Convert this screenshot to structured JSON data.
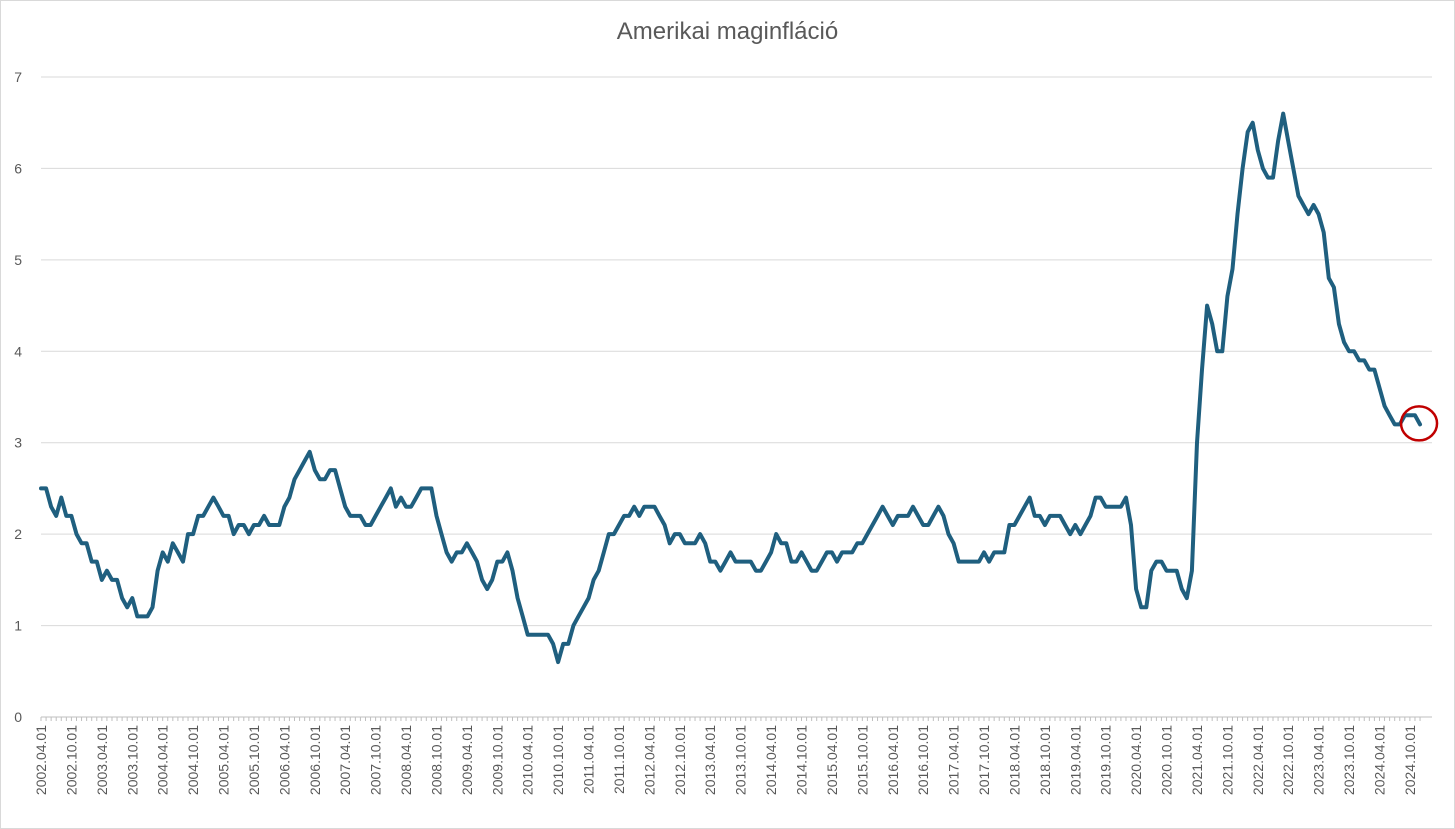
{
  "chart_data": {
    "type": "line",
    "title": "Amerikai maginfláció",
    "xlabel": "",
    "ylabel": "",
    "ylim": [
      0,
      7
    ],
    "yticks": [
      0,
      1,
      2,
      3,
      4,
      5,
      6,
      7
    ],
    "grid": true,
    "legend": "none",
    "x_start": "2002.04.01",
    "x_step_months": 1,
    "x_tick_labels": [
      "2002.04.01",
      "2002.10.01",
      "2003.04.01",
      "2003.10.01",
      "2004.04.01",
      "2004.10.01",
      "2005.04.01",
      "2005.10.01",
      "2006.04.01",
      "2006.10.01",
      "2007.04.01",
      "2007.10.01",
      "2008.04.01",
      "2008.10.01",
      "2009.04.01",
      "2009.10.01",
      "2010.04.01",
      "2010.10.01",
      "2011.04.01",
      "2011.10.01",
      "2012.04.01",
      "2012.10.01",
      "2013.04.01",
      "2013.10.01",
      "2014.04.01",
      "2014.10.01",
      "2015.04.01",
      "2015.10.01",
      "2016.04.01",
      "2016.10.01",
      "2017.04.01",
      "2017.10.01",
      "2018.04.01",
      "2018.10.01",
      "2019.04.01",
      "2019.10.01",
      "2020.04.01",
      "2020.10.01",
      "2021.04.01",
      "2021.10.01",
      "2022.04.01",
      "2022.10.01",
      "2023.04.01",
      "2023.10.01",
      "2024.04.01",
      "2024.10.01"
    ],
    "series": [
      {
        "color": "#1f5f7f",
        "values": [
          2.5,
          2.5,
          2.3,
          2.2,
          2.4,
          2.2,
          2.2,
          2.0,
          1.9,
          1.9,
          1.7,
          1.7,
          1.5,
          1.6,
          1.5,
          1.5,
          1.3,
          1.2,
          1.3,
          1.1,
          1.1,
          1.1,
          1.2,
          1.6,
          1.8,
          1.7,
          1.9,
          1.8,
          1.7,
          2.0,
          2.0,
          2.2,
          2.2,
          2.3,
          2.4,
          2.3,
          2.2,
          2.2,
          2.0,
          2.1,
          2.1,
          2.0,
          2.1,
          2.1,
          2.2,
          2.1,
          2.1,
          2.1,
          2.3,
          2.4,
          2.6,
          2.7,
          2.8,
          2.9,
          2.7,
          2.6,
          2.6,
          2.7,
          2.7,
          2.5,
          2.3,
          2.2,
          2.2,
          2.2,
          2.1,
          2.1,
          2.2,
          2.3,
          2.4,
          2.5,
          2.3,
          2.4,
          2.3,
          2.3,
          2.4,
          2.5,
          2.5,
          2.5,
          2.2,
          2.0,
          1.8,
          1.7,
          1.8,
          1.8,
          1.9,
          1.8,
          1.7,
          1.5,
          1.4,
          1.5,
          1.7,
          1.7,
          1.8,
          1.6,
          1.3,
          1.1,
          0.9,
          0.9,
          0.9,
          0.9,
          0.9,
          0.8,
          0.6,
          0.8,
          0.8,
          1.0,
          1.1,
          1.2,
          1.3,
          1.5,
          1.6,
          1.8,
          2.0,
          2.0,
          2.1,
          2.2,
          2.2,
          2.3,
          2.2,
          2.3,
          2.3,
          2.3,
          2.2,
          2.1,
          1.9,
          2.0,
          2.0,
          1.9,
          1.9,
          1.9,
          2.0,
          1.9,
          1.7,
          1.7,
          1.6,
          1.7,
          1.8,
          1.7,
          1.7,
          1.7,
          1.7,
          1.6,
          1.6,
          1.7,
          1.8,
          2.0,
          1.9,
          1.9,
          1.7,
          1.7,
          1.8,
          1.7,
          1.6,
          1.6,
          1.7,
          1.8,
          1.8,
          1.7,
          1.8,
          1.8,
          1.8,
          1.9,
          1.9,
          2.0,
          2.1,
          2.2,
          2.3,
          2.2,
          2.1,
          2.2,
          2.2,
          2.2,
          2.3,
          2.2,
          2.1,
          2.1,
          2.2,
          2.3,
          2.2,
          2.0,
          1.9,
          1.7,
          1.7,
          1.7,
          1.7,
          1.7,
          1.8,
          1.7,
          1.8,
          1.8,
          1.8,
          2.1,
          2.1,
          2.2,
          2.3,
          2.4,
          2.2,
          2.2,
          2.1,
          2.2,
          2.2,
          2.2,
          2.1,
          2.0,
          2.1,
          2.0,
          2.1,
          2.2,
          2.4,
          2.4,
          2.3,
          2.3,
          2.3,
          2.3,
          2.4,
          2.1,
          1.4,
          1.2,
          1.2,
          1.6,
          1.7,
          1.7,
          1.6,
          1.6,
          1.6,
          1.4,
          1.3,
          1.6,
          3.0,
          3.8,
          4.5,
          4.3,
          4.0,
          4.0,
          4.6,
          4.9,
          5.5,
          6.0,
          6.4,
          6.5,
          6.2,
          6.0,
          5.9,
          5.9,
          6.3,
          6.6,
          6.3,
          6.0,
          5.7,
          5.6,
          5.5,
          5.6,
          5.5,
          5.3,
          4.8,
          4.7,
          4.3,
          4.1,
          4.0,
          4.0,
          3.9,
          3.9,
          3.8,
          3.8,
          3.6,
          3.4,
          3.3,
          3.2,
          3.2,
          3.3,
          3.3,
          3.3,
          3.2
        ]
      }
    ],
    "annotations": [
      {
        "type": "circle",
        "color": "#c00000",
        "target": "last-point"
      }
    ]
  }
}
